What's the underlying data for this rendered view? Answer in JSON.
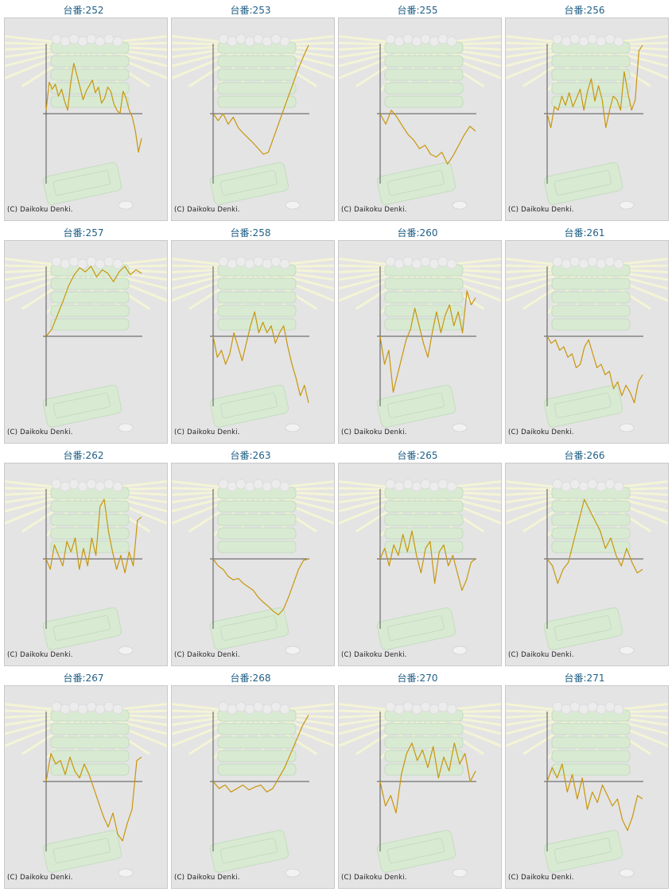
{
  "copyright": "(C) Daikoku Denki.",
  "colors": {
    "line": "#c8960c",
    "axis": "#555555",
    "panel_bg": "#e4e4e4",
    "title": "#1f5f86"
  },
  "machines": [
    {
      "label": "台番:252",
      "trend": [
        0.05,
        0.45,
        0.35,
        0.42,
        0.25,
        0.35,
        0.18,
        0.05,
        0.45,
        0.72,
        0.55,
        0.38,
        0.2,
        0.32,
        0.4,
        0.48,
        0.3,
        0.38,
        0.15,
        0.22,
        0.38,
        0.32,
        0.14,
        0.05,
        0.0,
        0.32,
        0.22,
        0.05,
        -0.05,
        -0.25,
        -0.55,
        -0.35
      ]
    },
    {
      "label": "台番:253",
      "trend": [
        0.0,
        -0.1,
        0.0,
        -0.15,
        -0.05,
        -0.2,
        -0.28,
        -0.35,
        -0.42,
        -0.5,
        -0.58,
        -0.55,
        -0.35,
        -0.15,
        0.05,
        0.25,
        0.45,
        0.65,
        0.82,
        0.98
      ]
    },
    {
      "label": "台番:255",
      "trend": [
        0.0,
        -0.15,
        0.05,
        -0.05,
        -0.18,
        -0.3,
        -0.38,
        -0.5,
        -0.45,
        -0.58,
        -0.62,
        -0.55,
        -0.72,
        -0.6,
        -0.45,
        -0.3,
        -0.18,
        -0.25
      ]
    },
    {
      "label": "台番:256",
      "trend": [
        0.0,
        -0.2,
        0.1,
        0.05,
        0.25,
        0.12,
        0.3,
        0.1,
        0.22,
        0.35,
        0.05,
        0.32,
        0.5,
        0.18,
        0.4,
        0.2,
        -0.2,
        0.05,
        0.25,
        0.2,
        0.05,
        0.6,
        0.3,
        0.05,
        0.2,
        0.9,
        0.98
      ]
    },
    {
      "label": "台番:257",
      "trend": [
        0.0,
        0.1,
        0.3,
        0.5,
        0.72,
        0.88,
        0.98,
        0.92,
        1.0,
        0.85,
        0.95,
        0.9,
        0.78,
        0.92,
        1.0,
        0.88,
        0.95,
        0.9
      ]
    },
    {
      "label": "台番:258",
      "trend": [
        0.0,
        -0.3,
        -0.2,
        -0.4,
        -0.25,
        0.05,
        -0.15,
        -0.35,
        -0.1,
        0.15,
        0.35,
        0.05,
        0.2,
        0.05,
        0.15,
        -0.1,
        0.05,
        0.15,
        -0.15,
        -0.4,
        -0.6,
        -0.85,
        -0.7,
        -0.95
      ]
    },
    {
      "label": "台番:260",
      "trend": [
        0.0,
        -0.4,
        -0.2,
        -0.8,
        -0.55,
        -0.3,
        -0.05,
        0.1,
        0.4,
        0.15,
        -0.1,
        -0.3,
        0.05,
        0.35,
        0.05,
        0.3,
        0.45,
        0.15,
        0.35,
        0.05,
        0.65,
        0.45,
        0.55
      ]
    },
    {
      "label": "台番:261",
      "trend": [
        0.0,
        -0.1,
        -0.05,
        -0.2,
        -0.15,
        -0.3,
        -0.25,
        -0.45,
        -0.4,
        -0.15,
        -0.05,
        -0.25,
        -0.45,
        -0.4,
        -0.55,
        -0.5,
        -0.75,
        -0.65,
        -0.85,
        -0.7,
        -0.8,
        -0.95,
        -0.65,
        -0.55
      ]
    },
    {
      "label": "台番:262",
      "trend": [
        0.0,
        -0.15,
        0.2,
        0.05,
        -0.1,
        0.25,
        0.1,
        0.3,
        -0.15,
        0.15,
        -0.1,
        0.3,
        0.05,
        0.75,
        0.85,
        0.4,
        0.1,
        -0.15,
        0.05,
        -0.2,
        0.1,
        -0.1,
        0.55,
        0.6
      ]
    },
    {
      "label": "台番:263",
      "trend": [
        0.0,
        -0.1,
        -0.15,
        -0.25,
        -0.3,
        -0.28,
        -0.35,
        -0.4,
        -0.45,
        -0.55,
        -0.62,
        -0.68,
        -0.75,
        -0.8,
        -0.72,
        -0.55,
        -0.35,
        -0.15,
        -0.02,
        0.0
      ]
    },
    {
      "label": "台番:265",
      "trend": [
        0.0,
        0.15,
        -0.1,
        0.2,
        0.05,
        0.35,
        0.1,
        0.4,
        0.05,
        -0.2,
        0.15,
        0.25,
        -0.35,
        0.1,
        0.2,
        -0.1,
        0.05,
        -0.2,
        -0.45,
        -0.3,
        -0.05,
        0.0
      ]
    },
    {
      "label": "台番:266",
      "trend": [
        0.0,
        -0.1,
        -0.35,
        -0.15,
        -0.05,
        0.25,
        0.55,
        0.85,
        0.7,
        0.55,
        0.4,
        0.15,
        0.3,
        0.05,
        -0.1,
        0.15,
        -0.05,
        -0.2,
        -0.15
      ]
    },
    {
      "label": "台番:267",
      "trend": [
        0.0,
        0.4,
        0.25,
        0.3,
        0.1,
        0.35,
        0.15,
        0.05,
        0.25,
        0.1,
        -0.1,
        -0.3,
        -0.5,
        -0.65,
        -0.45,
        -0.75,
        -0.85,
        -0.6,
        -0.4,
        0.3,
        0.35
      ]
    },
    {
      "label": "台番:268",
      "trend": [
        0.0,
        -0.1,
        -0.05,
        -0.15,
        -0.1,
        -0.05,
        -0.12,
        -0.08,
        -0.05,
        -0.15,
        -0.1,
        0.05,
        0.2,
        0.4,
        0.6,
        0.8,
        0.95
      ]
    },
    {
      "label": "台番:270",
      "trend": [
        0.0,
        -0.35,
        -0.2,
        -0.45,
        0.1,
        0.4,
        0.55,
        0.3,
        0.45,
        0.2,
        0.5,
        0.05,
        0.35,
        0.15,
        0.55,
        0.25,
        0.4,
        0.0,
        0.15
      ]
    },
    {
      "label": "台番:271",
      "trend": [
        0.0,
        0.2,
        0.05,
        0.25,
        -0.15,
        0.1,
        -0.25,
        0.05,
        -0.4,
        -0.15,
        -0.3,
        -0.05,
        -0.2,
        -0.35,
        -0.25,
        -0.55,
        -0.7,
        -0.5,
        -0.2,
        -0.25
      ]
    }
  ]
}
